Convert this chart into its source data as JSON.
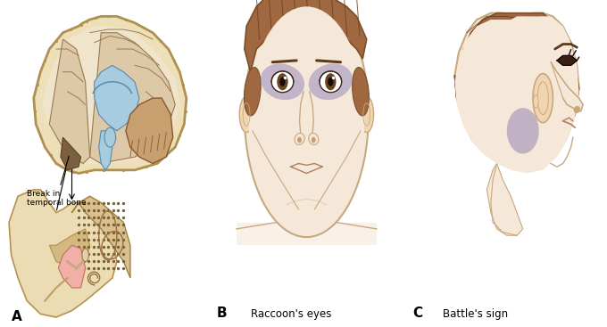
{
  "background_color": "#ffffff",
  "label_A": "A",
  "label_B": "B",
  "label_C": "C",
  "caption_B": "Raccoon's eyes",
  "caption_C": "Battle's sign",
  "annotation_text": "Break in\ntemporal bone",
  "fig_width": 6.8,
  "fig_height": 3.67,
  "dpi": 100,
  "skin_color": "#f5e8d8",
  "skin_edge": "#c8a880",
  "hair_color": "#a06840",
  "hair_dark": "#7a4e28",
  "hair_line": "#6b3e1e",
  "skull_fill": "#e8d5a8",
  "skull_edge": "#b89850",
  "brain_fill": "#e0c8a8",
  "brain_edge": "#9a7a50",
  "csf_fill": "#b8d8e8",
  "csf_edge": "#6090b0",
  "cereb_fill": "#c8a080",
  "cereb_edge": "#8a5830",
  "bruise_color": "#8878b0",
  "ear_fill": "#e8d0a0",
  "ear_edge": "#b89050",
  "pink_fill": "#f0b8b0",
  "mastoid_fill": "#d4b888"
}
